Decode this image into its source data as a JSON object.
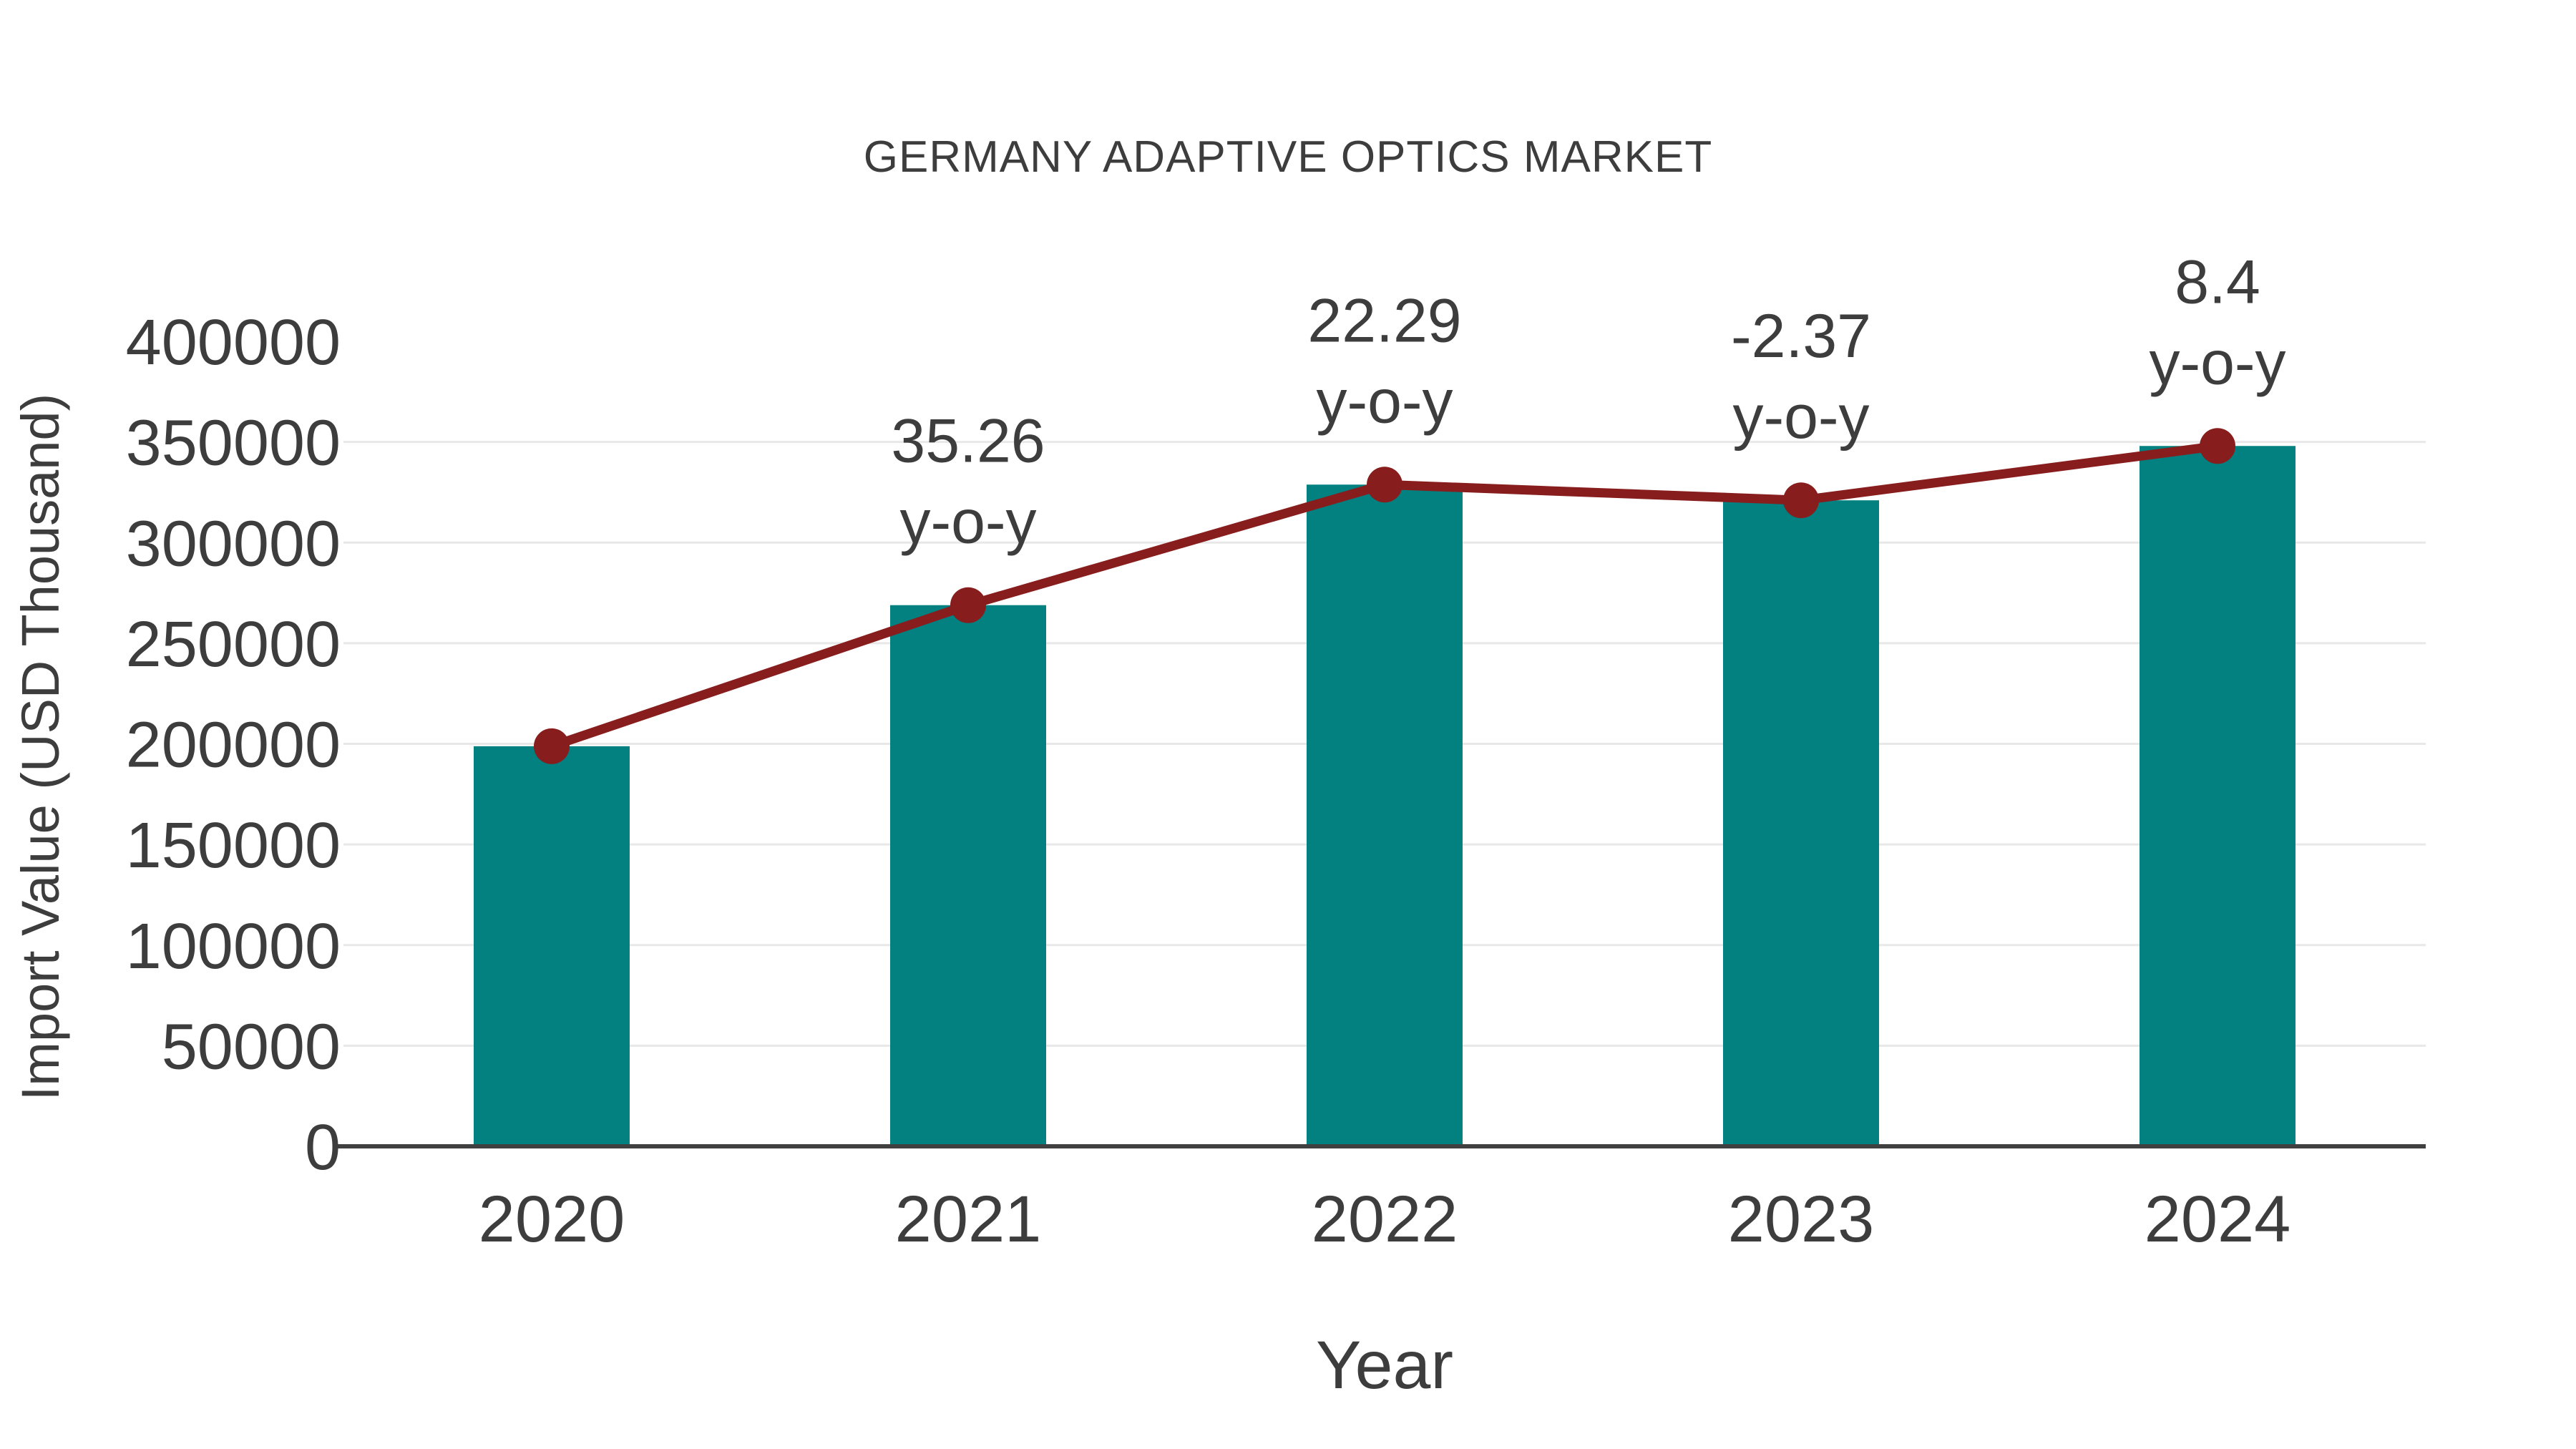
{
  "chart_data": {
    "type": "bar+line",
    "title": "GERMANY ADAPTIVE OPTICS MARKET",
    "xlabel": "Year",
    "ylabel": "Import Value (USD Thousand)",
    "categories": [
      "2020",
      "2021",
      "2022",
      "2023",
      "2024"
    ],
    "series": [
      {
        "name": "Import Value",
        "type": "bar",
        "color": "#038080",
        "values": [
          198800,
          268900,
          328800,
          321000,
          348000
        ]
      },
      {
        "name": "y-o-y growth",
        "type": "line",
        "color": "#881d1d",
        "marker": "circle",
        "plotted_on_bar_tops": true,
        "values_percent": [
          null,
          35.26,
          22.29,
          -2.37,
          8.4
        ]
      }
    ],
    "point_labels": [
      {
        "category": "2021",
        "lines": [
          "35.26",
          "y-o-y"
        ]
      },
      {
        "category": "2022",
        "lines": [
          "22.29",
          "y-o-y"
        ]
      },
      {
        "category": "2023",
        "lines": [
          "-2.37",
          "y-o-y"
        ]
      },
      {
        "category": "2024",
        "lines": [
          "8.4",
          "y-o-y"
        ]
      }
    ],
    "ylim": [
      0,
      400000
    ],
    "ytick_step": 50000,
    "yticks": [
      "0",
      "50000",
      "100000",
      "150000",
      "200000",
      "250000",
      "300000",
      "350000",
      "400000"
    ],
    "grid": "horizontal",
    "legend": "none",
    "colors": {
      "bar": "#038080",
      "line": "#881d1d",
      "text": "#3d3d3d",
      "grid": "#e8e8e8",
      "axis": "#404040",
      "background": "#ffffff"
    }
  }
}
